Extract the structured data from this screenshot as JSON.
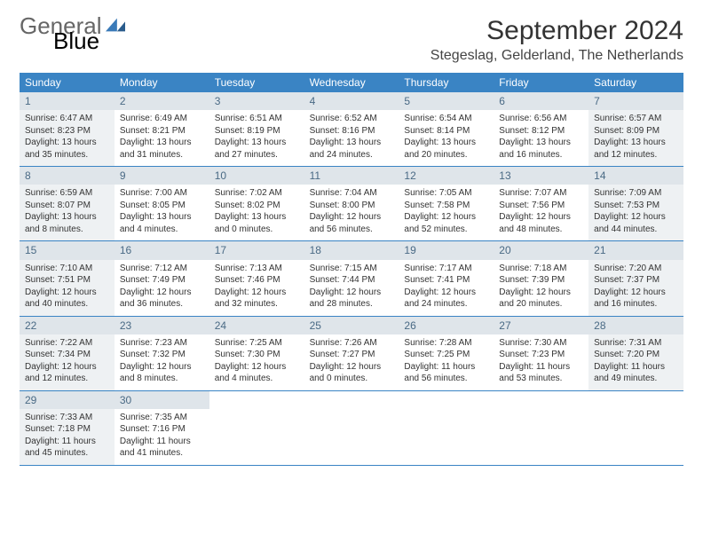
{
  "logo": {
    "word1": "General",
    "word2": "Blue"
  },
  "title": "September 2024",
  "location": "Stegeslag, Gelderland, The Netherlands",
  "colors": {
    "header_bg": "#3a84c4",
    "header_fg": "#ffffff",
    "daynum_bg": "#dfe5ea",
    "daynum_fg": "#4a6a85",
    "shaded_bg": "#eef1f3",
    "border": "#3a84c4",
    "logo_blue": "#3a7ab8"
  },
  "weekdays": [
    "Sunday",
    "Monday",
    "Tuesday",
    "Wednesday",
    "Thursday",
    "Friday",
    "Saturday"
  ],
  "weeks": [
    [
      {
        "n": "1",
        "shaded": true,
        "sunrise": "Sunrise: 6:47 AM",
        "sunset": "Sunset: 8:23 PM",
        "daylight": "Daylight: 13 hours and 35 minutes."
      },
      {
        "n": "2",
        "shaded": false,
        "sunrise": "Sunrise: 6:49 AM",
        "sunset": "Sunset: 8:21 PM",
        "daylight": "Daylight: 13 hours and 31 minutes."
      },
      {
        "n": "3",
        "shaded": false,
        "sunrise": "Sunrise: 6:51 AM",
        "sunset": "Sunset: 8:19 PM",
        "daylight": "Daylight: 13 hours and 27 minutes."
      },
      {
        "n": "4",
        "shaded": false,
        "sunrise": "Sunrise: 6:52 AM",
        "sunset": "Sunset: 8:16 PM",
        "daylight": "Daylight: 13 hours and 24 minutes."
      },
      {
        "n": "5",
        "shaded": false,
        "sunrise": "Sunrise: 6:54 AM",
        "sunset": "Sunset: 8:14 PM",
        "daylight": "Daylight: 13 hours and 20 minutes."
      },
      {
        "n": "6",
        "shaded": false,
        "sunrise": "Sunrise: 6:56 AM",
        "sunset": "Sunset: 8:12 PM",
        "daylight": "Daylight: 13 hours and 16 minutes."
      },
      {
        "n": "7",
        "shaded": true,
        "sunrise": "Sunrise: 6:57 AM",
        "sunset": "Sunset: 8:09 PM",
        "daylight": "Daylight: 13 hours and 12 minutes."
      }
    ],
    [
      {
        "n": "8",
        "shaded": true,
        "sunrise": "Sunrise: 6:59 AM",
        "sunset": "Sunset: 8:07 PM",
        "daylight": "Daylight: 13 hours and 8 minutes."
      },
      {
        "n": "9",
        "shaded": false,
        "sunrise": "Sunrise: 7:00 AM",
        "sunset": "Sunset: 8:05 PM",
        "daylight": "Daylight: 13 hours and 4 minutes."
      },
      {
        "n": "10",
        "shaded": false,
        "sunrise": "Sunrise: 7:02 AM",
        "sunset": "Sunset: 8:02 PM",
        "daylight": "Daylight: 13 hours and 0 minutes."
      },
      {
        "n": "11",
        "shaded": false,
        "sunrise": "Sunrise: 7:04 AM",
        "sunset": "Sunset: 8:00 PM",
        "daylight": "Daylight: 12 hours and 56 minutes."
      },
      {
        "n": "12",
        "shaded": false,
        "sunrise": "Sunrise: 7:05 AM",
        "sunset": "Sunset: 7:58 PM",
        "daylight": "Daylight: 12 hours and 52 minutes."
      },
      {
        "n": "13",
        "shaded": false,
        "sunrise": "Sunrise: 7:07 AM",
        "sunset": "Sunset: 7:56 PM",
        "daylight": "Daylight: 12 hours and 48 minutes."
      },
      {
        "n": "14",
        "shaded": true,
        "sunrise": "Sunrise: 7:09 AM",
        "sunset": "Sunset: 7:53 PM",
        "daylight": "Daylight: 12 hours and 44 minutes."
      }
    ],
    [
      {
        "n": "15",
        "shaded": true,
        "sunrise": "Sunrise: 7:10 AM",
        "sunset": "Sunset: 7:51 PM",
        "daylight": "Daylight: 12 hours and 40 minutes."
      },
      {
        "n": "16",
        "shaded": false,
        "sunrise": "Sunrise: 7:12 AM",
        "sunset": "Sunset: 7:49 PM",
        "daylight": "Daylight: 12 hours and 36 minutes."
      },
      {
        "n": "17",
        "shaded": false,
        "sunrise": "Sunrise: 7:13 AM",
        "sunset": "Sunset: 7:46 PM",
        "daylight": "Daylight: 12 hours and 32 minutes."
      },
      {
        "n": "18",
        "shaded": false,
        "sunrise": "Sunrise: 7:15 AM",
        "sunset": "Sunset: 7:44 PM",
        "daylight": "Daylight: 12 hours and 28 minutes."
      },
      {
        "n": "19",
        "shaded": false,
        "sunrise": "Sunrise: 7:17 AM",
        "sunset": "Sunset: 7:41 PM",
        "daylight": "Daylight: 12 hours and 24 minutes."
      },
      {
        "n": "20",
        "shaded": false,
        "sunrise": "Sunrise: 7:18 AM",
        "sunset": "Sunset: 7:39 PM",
        "daylight": "Daylight: 12 hours and 20 minutes."
      },
      {
        "n": "21",
        "shaded": true,
        "sunrise": "Sunrise: 7:20 AM",
        "sunset": "Sunset: 7:37 PM",
        "daylight": "Daylight: 12 hours and 16 minutes."
      }
    ],
    [
      {
        "n": "22",
        "shaded": true,
        "sunrise": "Sunrise: 7:22 AM",
        "sunset": "Sunset: 7:34 PM",
        "daylight": "Daylight: 12 hours and 12 minutes."
      },
      {
        "n": "23",
        "shaded": false,
        "sunrise": "Sunrise: 7:23 AM",
        "sunset": "Sunset: 7:32 PM",
        "daylight": "Daylight: 12 hours and 8 minutes."
      },
      {
        "n": "24",
        "shaded": false,
        "sunrise": "Sunrise: 7:25 AM",
        "sunset": "Sunset: 7:30 PM",
        "daylight": "Daylight: 12 hours and 4 minutes."
      },
      {
        "n": "25",
        "shaded": false,
        "sunrise": "Sunrise: 7:26 AM",
        "sunset": "Sunset: 7:27 PM",
        "daylight": "Daylight: 12 hours and 0 minutes."
      },
      {
        "n": "26",
        "shaded": false,
        "sunrise": "Sunrise: 7:28 AM",
        "sunset": "Sunset: 7:25 PM",
        "daylight": "Daylight: 11 hours and 56 minutes."
      },
      {
        "n": "27",
        "shaded": false,
        "sunrise": "Sunrise: 7:30 AM",
        "sunset": "Sunset: 7:23 PM",
        "daylight": "Daylight: 11 hours and 53 minutes."
      },
      {
        "n": "28",
        "shaded": true,
        "sunrise": "Sunrise: 7:31 AM",
        "sunset": "Sunset: 7:20 PM",
        "daylight": "Daylight: 11 hours and 49 minutes."
      }
    ],
    [
      {
        "n": "29",
        "shaded": true,
        "sunrise": "Sunrise: 7:33 AM",
        "sunset": "Sunset: 7:18 PM",
        "daylight": "Daylight: 11 hours and 45 minutes."
      },
      {
        "n": "30",
        "shaded": false,
        "sunrise": "Sunrise: 7:35 AM",
        "sunset": "Sunset: 7:16 PM",
        "daylight": "Daylight: 11 hours and 41 minutes."
      },
      null,
      null,
      null,
      null,
      null
    ]
  ]
}
